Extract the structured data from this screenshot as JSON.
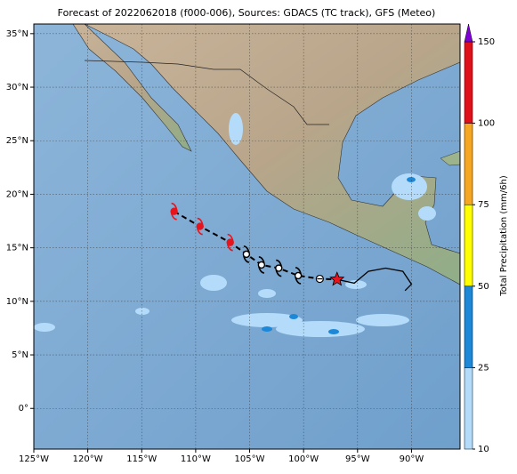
{
  "chart_data": {
    "type": "map",
    "title": "Forecast of 2022062018 (f000-006), Sources: GDACS (TC track), GFS (Meteo)",
    "xlim": [
      -125,
      -85.5
    ],
    "ylim": [
      -3.8,
      35.9
    ],
    "xticks": [
      {
        "value": -125,
        "label": "125°W"
      },
      {
        "value": -120,
        "label": "120°W"
      },
      {
        "value": -115,
        "label": "115°W"
      },
      {
        "value": -110,
        "label": "110°W"
      },
      {
        "value": -105,
        "label": "105°W"
      },
      {
        "value": -100,
        "label": "100°W"
      },
      {
        "value": -95,
        "label": "95°W"
      },
      {
        "value": -90,
        "label": "90°W"
      }
    ],
    "yticks": [
      {
        "value": 0,
        "label": "0°"
      },
      {
        "value": 5,
        "label": "5°N"
      },
      {
        "value": 10,
        "label": "10°N"
      },
      {
        "value": 15,
        "label": "15°N"
      },
      {
        "value": 20,
        "label": "20°N"
      },
      {
        "value": 25,
        "label": "25°N"
      },
      {
        "value": 30,
        "label": "30°N"
      },
      {
        "value": 35,
        "label": "35°N"
      }
    ],
    "grid": true,
    "forecast_track": {
      "lon": [
        -112.0,
        -109.6,
        -106.8,
        -105.3,
        -103.9,
        -102.3,
        -100.5,
        -98.5
      ],
      "lat": [
        18.4,
        17.0,
        15.5,
        14.4,
        13.4,
        13.1,
        12.4,
        12.1
      ],
      "colors": [
        "#e8141c",
        "#e8141c",
        "#e8141c",
        "#000000",
        "#000000",
        "#000000",
        "#000000",
        "#000000"
      ]
    },
    "current_position": {
      "lon": -96.9,
      "lat": 12.05,
      "color": "#e8141c"
    },
    "observed_track": {
      "lon": [
        -96.9,
        -95.3,
        -94.0,
        -92.4,
        -90.8,
        -90.0,
        -90.6
      ],
      "lat": [
        12.05,
        11.7,
        12.8,
        13.1,
        12.8,
        11.6,
        11.0
      ],
      "color": "#000000"
    },
    "colorbar": {
      "label": "Total Precipitation (mm/6h)",
      "ticks": [
        10,
        25,
        50,
        75,
        100,
        150
      ],
      "colors": [
        "#b4dcfa",
        "#1e88d8",
        "#ffff00",
        "#f5a623",
        "#e0101a"
      ],
      "extend_color": "#7f00d4"
    }
  }
}
